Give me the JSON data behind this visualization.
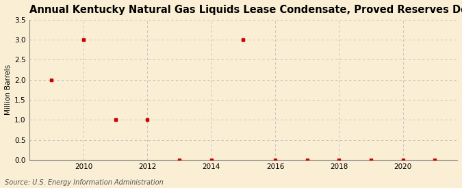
{
  "title": "Annual Kentucky Natural Gas Liquids Lease Condensate, Proved Reserves Decreases",
  "ylabel": "Million Barrels",
  "source": "Source: U.S. Energy Information Administration",
  "background_color": "#faefd4",
  "plot_bg_color": "#faefd4",
  "years": [
    2009,
    2010,
    2011,
    2012,
    2013,
    2014,
    2015,
    2016,
    2017,
    2018,
    2019,
    2020,
    2021
  ],
  "values": [
    2.0,
    3.0,
    1.0,
    1.0,
    0.0,
    0.0,
    3.0,
    0.0,
    0.0,
    0.0,
    0.0,
    0.0,
    0.0
  ],
  "marker_color": "#cc0000",
  "marker_style": "s",
  "marker_size": 3,
  "ylim": [
    0.0,
    3.5
  ],
  "yticks": [
    0.0,
    0.5,
    1.0,
    1.5,
    2.0,
    2.5,
    3.0,
    3.5
  ],
  "xlim": [
    2008.3,
    2021.7
  ],
  "xticks": [
    2010,
    2012,
    2014,
    2016,
    2018,
    2020
  ],
  "grid_color": "#bbbbbb",
  "title_fontsize": 10.5,
  "label_fontsize": 7.5,
  "tick_fontsize": 7.5,
  "source_fontsize": 7
}
